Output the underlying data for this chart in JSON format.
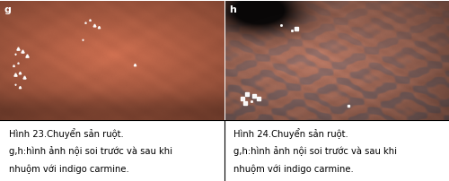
{
  "fig_width": 5.0,
  "fig_height": 2.03,
  "dpi": 100,
  "background_color": "#ffffff",
  "border_color": "#000000",
  "caption_left": [
    "Hình 23.Chuyển sản ruột.",
    "g,h:hình ảnh nội soi trước và sau khi",
    "nhuộm với indigo carmine."
  ],
  "caption_right": [
    "Hình 24.Chuyển sản ruột.",
    "g,h:hình ảnh nội soi trước và sau khi",
    "nhuộm với indigo carmine."
  ],
  "label_g": "g",
  "label_h": "h",
  "caption_fontsize": 7.2,
  "label_fontsize": 8,
  "text_color": "#000000"
}
